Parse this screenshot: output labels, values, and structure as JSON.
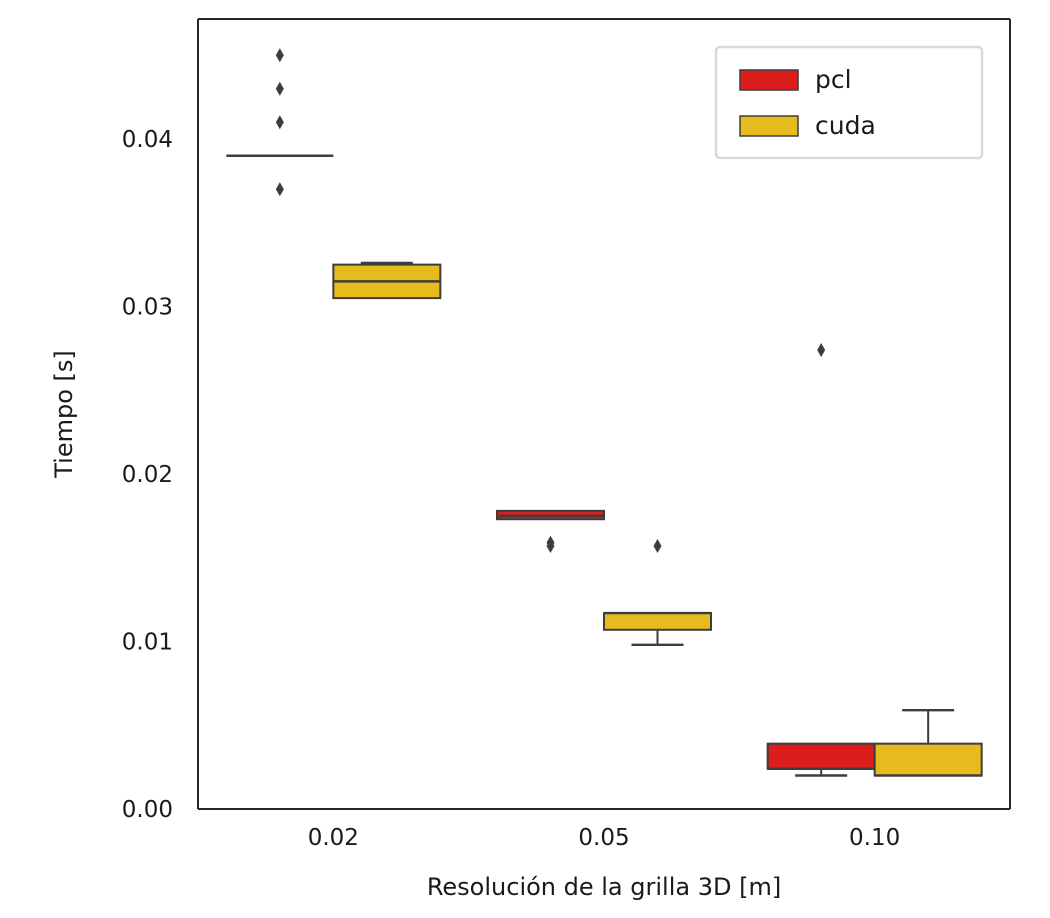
{
  "chart_data": {
    "type": "box",
    "title": "",
    "xlabel": "Resolución de la grilla 3D [m]",
    "ylabel": "Tiempo [s]",
    "ylim": [
      0.0,
      0.0465
    ],
    "yticks": [
      0.0,
      0.01,
      0.02,
      0.03,
      0.04
    ],
    "ytick_labels": [
      "0.00",
      "0.01",
      "0.02",
      "0.03",
      "0.04"
    ],
    "categories": [
      "0.02",
      "0.05",
      "0.10"
    ],
    "legend": {
      "position": "upper right",
      "entries": [
        "pcl",
        "cuda"
      ]
    },
    "series": [
      {
        "name": "pcl",
        "color": "#dd1c1c",
        "boxes": [
          {
            "category": "0.02",
            "whislo": 0.039,
            "q1": 0.039,
            "med": 0.039,
            "q3": 0.039,
            "whishi": 0.039,
            "fliers": [
              0.045,
              0.043,
              0.041,
              0.037
            ]
          },
          {
            "category": "0.05",
            "whislo": 0.0173,
            "q1": 0.0173,
            "med": 0.0175,
            "q3": 0.0178,
            "whishi": 0.0178,
            "fliers": [
              0.0159,
              0.0157
            ]
          },
          {
            "category": "0.10",
            "whislo": 0.002,
            "q1": 0.0024,
            "med": 0.0024,
            "q3": 0.0039,
            "whishi": 0.0039,
            "fliers": [
              0.0274
            ]
          }
        ]
      },
      {
        "name": "cuda",
        "color": "#e5bb1e",
        "boxes": [
          {
            "category": "0.02",
            "whislo": 0.0305,
            "q1": 0.0305,
            "med": 0.0315,
            "q3": 0.0325,
            "whishi": 0.0326,
            "fliers": []
          },
          {
            "category": "0.05",
            "whislo": 0.0098,
            "q1": 0.0107,
            "med": 0.0117,
            "q3": 0.0117,
            "whishi": 0.0117,
            "fliers": [
              0.0157
            ]
          },
          {
            "category": "0.10",
            "whislo": 0.002,
            "q1": 0.002,
            "med": 0.002,
            "q3": 0.0039,
            "whishi": 0.0059,
            "fliers": []
          }
        ]
      }
    ]
  }
}
